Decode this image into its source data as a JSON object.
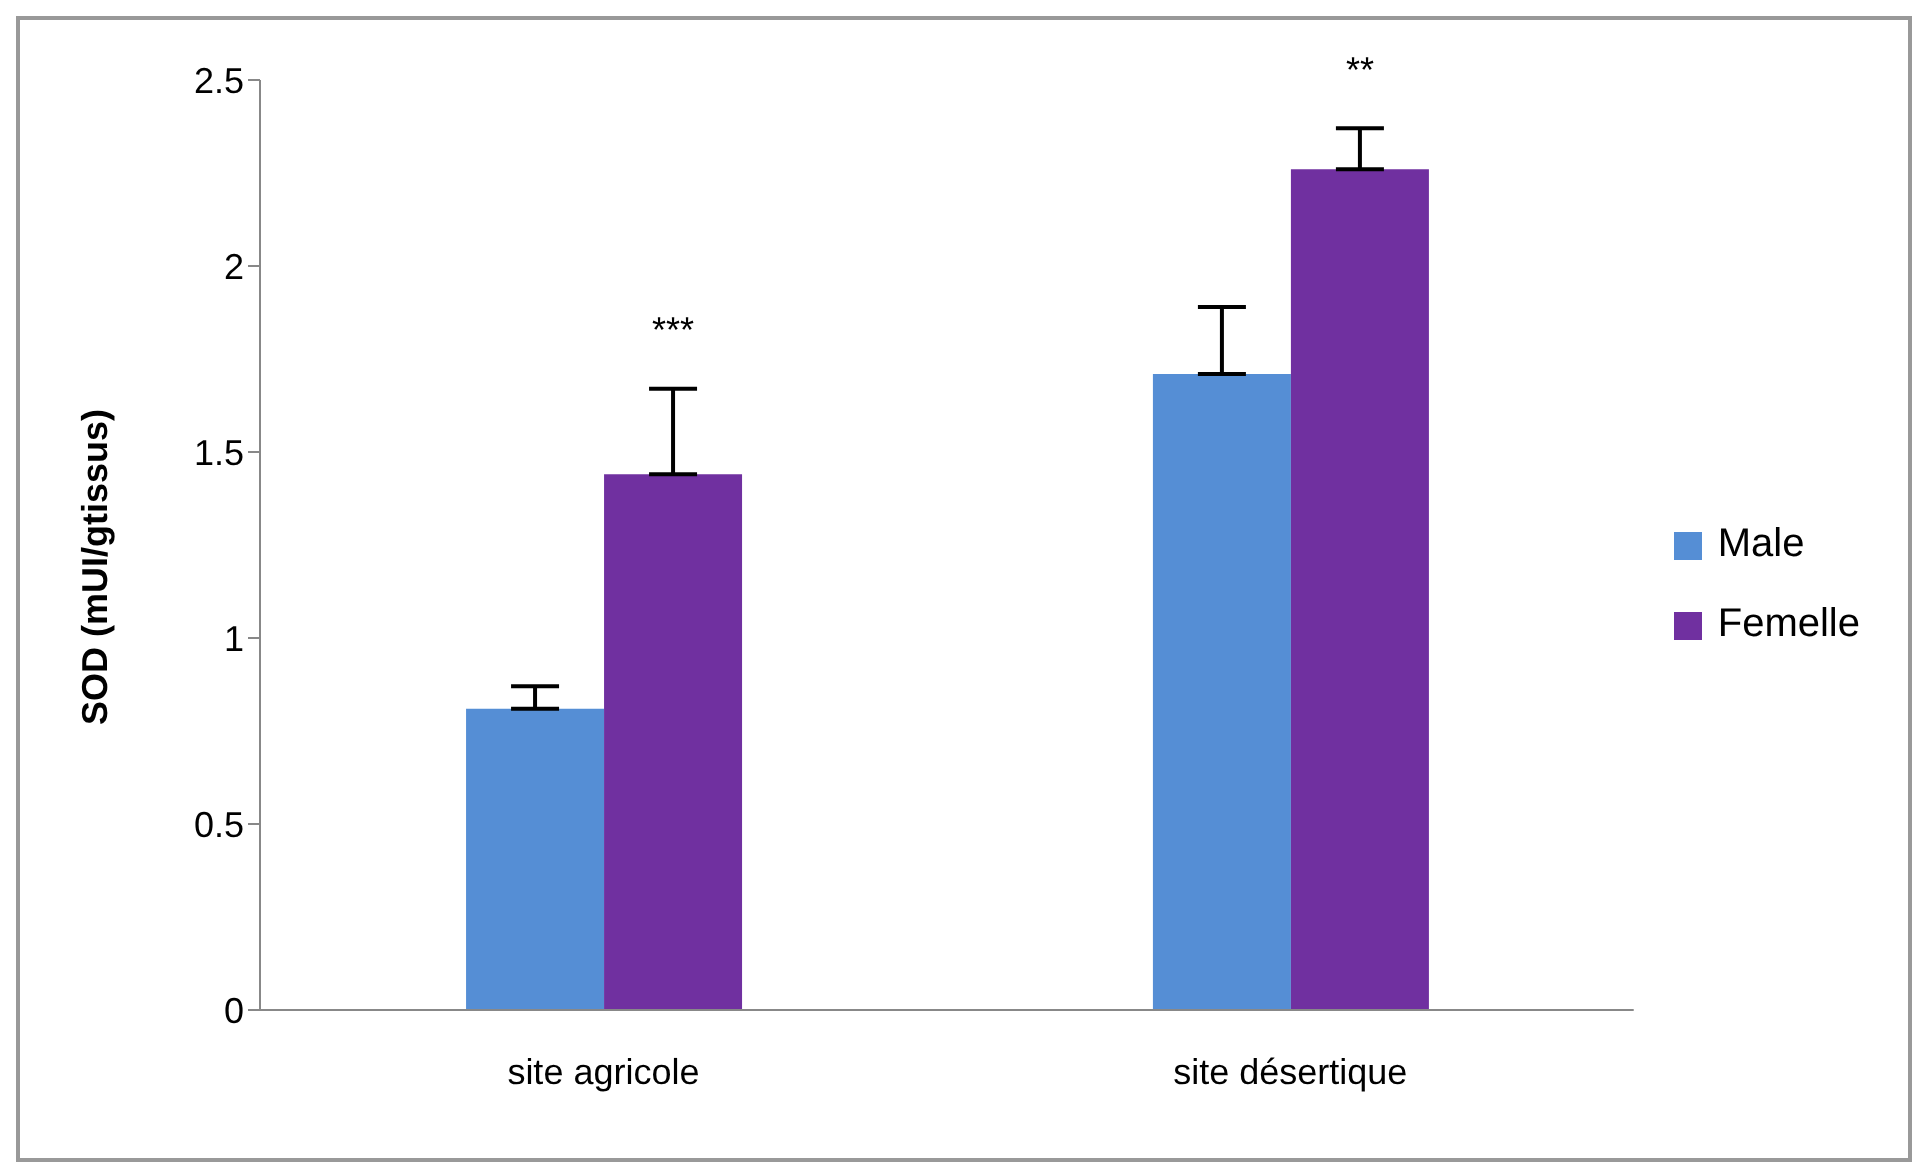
{
  "chart_data": {
    "type": "bar",
    "ylabel": "SOD (mUI/gtissus)",
    "categories": [
      "site agricole",
      "site désertique"
    ],
    "series": [
      {
        "name": "Male",
        "color": "#558ed5",
        "values": [
          0.81,
          1.71
        ],
        "errors": [
          [
            0.81,
            0.87
          ],
          [
            1.71,
            1.89
          ]
        ]
      },
      {
        "name": "Femelle",
        "color": "#7030a0",
        "values": [
          1.44,
          2.26
        ],
        "errors": [
          [
            1.44,
            1.67
          ],
          [
            2.26,
            2.37
          ]
        ]
      }
    ],
    "ylim": [
      0,
      2.5
    ],
    "yticks": [
      0,
      0.5,
      1,
      1.5,
      2,
      2.5
    ],
    "grid": false,
    "legend": "right",
    "annotations": [
      "***",
      "**"
    ]
  }
}
